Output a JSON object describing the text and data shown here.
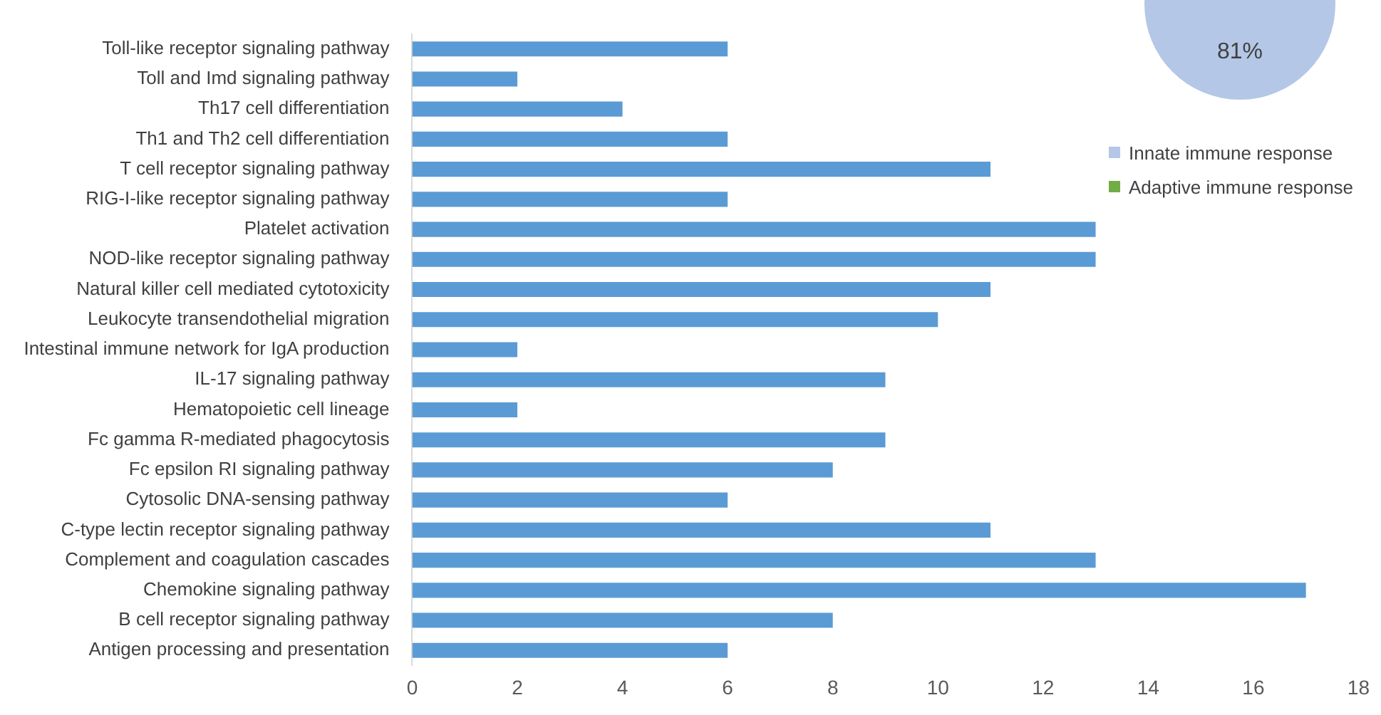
{
  "chart_data": [
    {
      "type": "bar",
      "orientation": "horizontal",
      "categories": [
        "Toll-like receptor signaling pathway",
        "Toll and Imd signaling pathway",
        "Th17 cell differentiation",
        "Th1 and Th2 cell differentiation",
        "T cell receptor signaling pathway",
        "RIG-I-like receptor signaling pathway",
        "Platelet activation",
        "NOD-like receptor signaling pathway",
        "Natural killer cell mediated cytotoxicity",
        "Leukocyte transendothelial migration",
        "Intestinal immune network for IgA production",
        "IL-17 signaling pathway",
        "Hematopoietic cell lineage",
        "Fc gamma R-mediated phagocytosis",
        "Fc epsilon RI signaling pathway",
        "Cytosolic DNA-sensing pathway",
        "C-type lectin receptor signaling pathway",
        "Complement and coagulation cascades",
        "Chemokine signaling pathway",
        "B cell receptor signaling pathway",
        "Antigen processing and presentation"
      ],
      "values": [
        6,
        2,
        4,
        6,
        11,
        6,
        13,
        13,
        11,
        10,
        2,
        9,
        2,
        9,
        8,
        6,
        11,
        13,
        17,
        8,
        6
      ],
      "color": "#5b9bd5",
      "xlim": [
        0,
        18
      ],
      "xticks": [
        0,
        2,
        4,
        6,
        8,
        10,
        12,
        14,
        16,
        18
      ],
      "grid": false,
      "legend": false
    },
    {
      "type": "pie",
      "categories": [
        "Innate immune response",
        "Adaptive immune response"
      ],
      "values": [
        81,
        null
      ],
      "colors": [
        "#b4c7e7",
        "#70ad47"
      ],
      "value_labels": [
        "81%",
        null
      ],
      "legend": "right"
    }
  ]
}
